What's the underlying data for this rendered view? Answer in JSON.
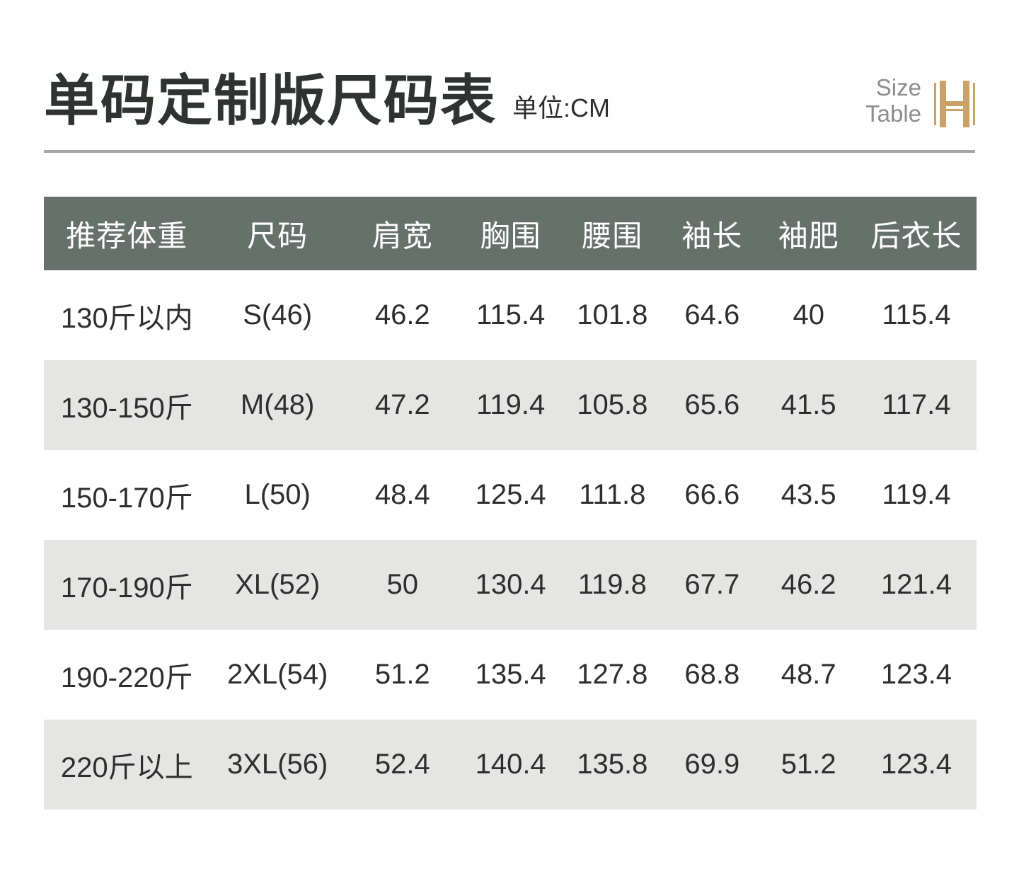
{
  "page": {
    "title": "单码定制版尺码表",
    "unit_label": "单位:CM"
  },
  "brand": {
    "line1": "Size",
    "line2": "Table",
    "logo": "h-monogram"
  },
  "table": {
    "columns": [
      "推荐体重",
      "尺码",
      "肩宽",
      "胸围",
      "腰围",
      "袖长",
      "袖肥",
      "后衣长"
    ],
    "column_widths_percent": [
      17.8,
      14.5,
      12.3,
      10.9,
      10.9,
      10.5,
      10.2,
      12.9
    ],
    "rows": [
      [
        "130斤以内",
        "S(46)",
        "46.2",
        "115.4",
        "101.8",
        "64.6",
        "40",
        "115.4"
      ],
      [
        "130-150斤",
        "M(48)",
        "47.2",
        "119.4",
        "105.8",
        "65.6",
        "41.5",
        "117.4"
      ],
      [
        "150-170斤",
        "L(50)",
        "48.4",
        "125.4",
        "111.8",
        "66.6",
        "43.5",
        "119.4"
      ],
      [
        "170-190斤",
        "XL(52)",
        "50",
        "130.4",
        "119.8",
        "67.7",
        "46.2",
        "121.4"
      ],
      [
        "190-220斤",
        "2XL(54)",
        "51.2",
        "135.4",
        "127.8",
        "68.8",
        "48.7",
        "123.4"
      ],
      [
        "220斤以上",
        "3XL(56)",
        "52.4",
        "140.4",
        "135.8",
        "69.9",
        "51.2",
        "123.4"
      ]
    ]
  },
  "colors": {
    "header_bg": "#67716B",
    "row_alt_bg": "#E5E5E4",
    "accent_gold": "#C8A269",
    "divider_gray": "#A7A7A4",
    "text_dark": "#2E2E2E",
    "brand_text_gray": "#8C8C8C"
  }
}
